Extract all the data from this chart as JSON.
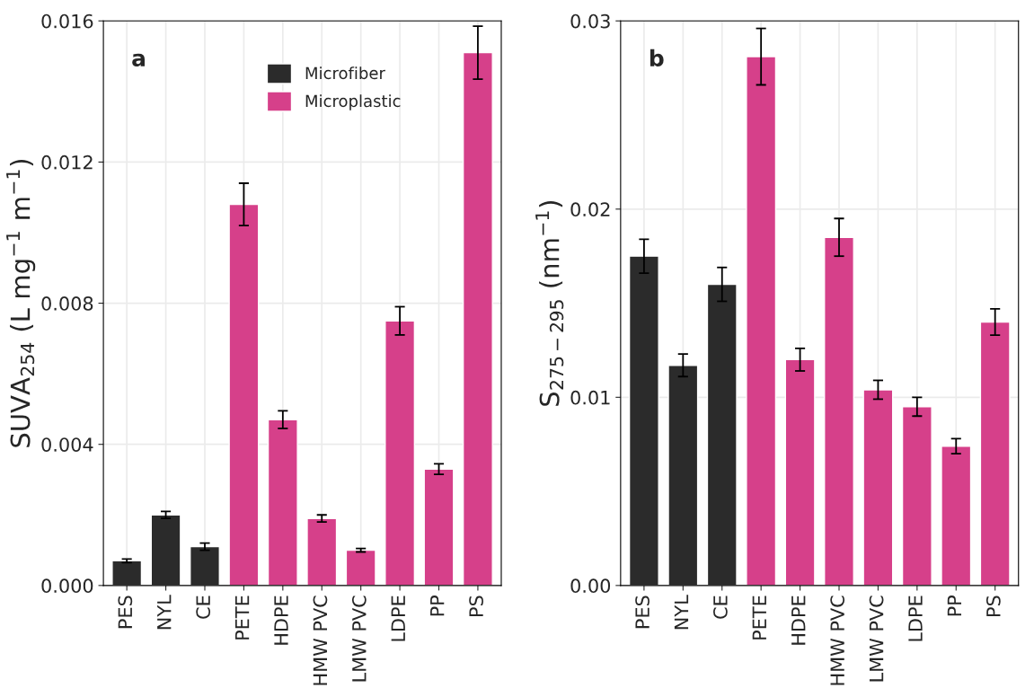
{
  "chart_data": [
    {
      "type": "bar",
      "categories": [
        "PES",
        "NYL",
        "CE",
        "PETE",
        "HDPE",
        "HMW PVC",
        "LMW PVC",
        "LDPE",
        "PP",
        "PS"
      ],
      "ylabel": "SUVA$_{254}$ (L mg$^{−1}$ m$^{−1}$)",
      "annotations": [
        "a"
      ],
      "series": [
        {
          "name": "Microfiber",
          "color": "#2b2b2b",
          "values": [
            0.0007,
            0.002,
            0.0011,
            null,
            null,
            null,
            null,
            null,
            null,
            null
          ],
          "errors": [
            5e-05,
            0.0001,
            0.0001,
            null,
            null,
            null,
            null,
            null,
            null,
            null
          ]
        },
        {
          "name": "Microplastic",
          "color": "#d6408a",
          "values": [
            null,
            null,
            null,
            0.0108,
            0.0047,
            0.0019,
            0.001,
            0.0075,
            0.0033,
            0.0151
          ],
          "errors": [
            null,
            null,
            null,
            0.0006,
            0.00025,
            0.0001,
            5e-05,
            0.0004,
            0.00015,
            0.00075
          ]
        }
      ],
      "ylim": [
        0,
        0.016
      ],
      "yticks": [
        {
          "value": 0,
          "label": "0.000"
        },
        {
          "value": 0.004,
          "label": "0.004"
        },
        {
          "value": 0.008,
          "label": "0.008"
        },
        {
          "value": 0.012,
          "label": "0.012"
        },
        {
          "value": 0.016,
          "label": "0.016"
        }
      ],
      "grid": true,
      "legend": "top"
    },
    {
      "type": "bar",
      "categories": [
        "PES",
        "NYL",
        "CE",
        "PETE",
        "HDPE",
        "HMW PVC",
        "LMW PVC",
        "LDPE",
        "PP",
        "PS"
      ],
      "ylabel": "S$_{275−295}$ (nm$^{−1}$)",
      "annotations": [
        "b"
      ],
      "series": [
        {
          "color": "#2b2b2b",
          "values": [
            0.0175,
            0.0117,
            0.016,
            null,
            null,
            null,
            null,
            null,
            null,
            null
          ],
          "errors": [
            0.0009,
            0.0006,
            0.0009,
            null,
            null,
            null,
            null,
            null,
            null,
            null
          ]
        },
        {
          "color": "#d6408a",
          "values": [
            null,
            null,
            null,
            0.0281,
            0.012,
            0.0185,
            0.0104,
            0.0095,
            0.0074,
            0.014
          ],
          "errors": [
            null,
            null,
            null,
            0.0015,
            0.0006,
            0.001,
            0.0005,
            0.0005,
            0.0004,
            0.0007
          ]
        }
      ],
      "ylim": [
        0,
        0.03
      ],
      "yticks": [
        {
          "value": 0,
          "label": "0.00"
        },
        {
          "value": 0.01,
          "label": "0.01"
        },
        {
          "value": 0.02,
          "label": "0.02"
        },
        {
          "value": 0.03,
          "label": "0.03"
        }
      ],
      "grid": true
    }
  ]
}
